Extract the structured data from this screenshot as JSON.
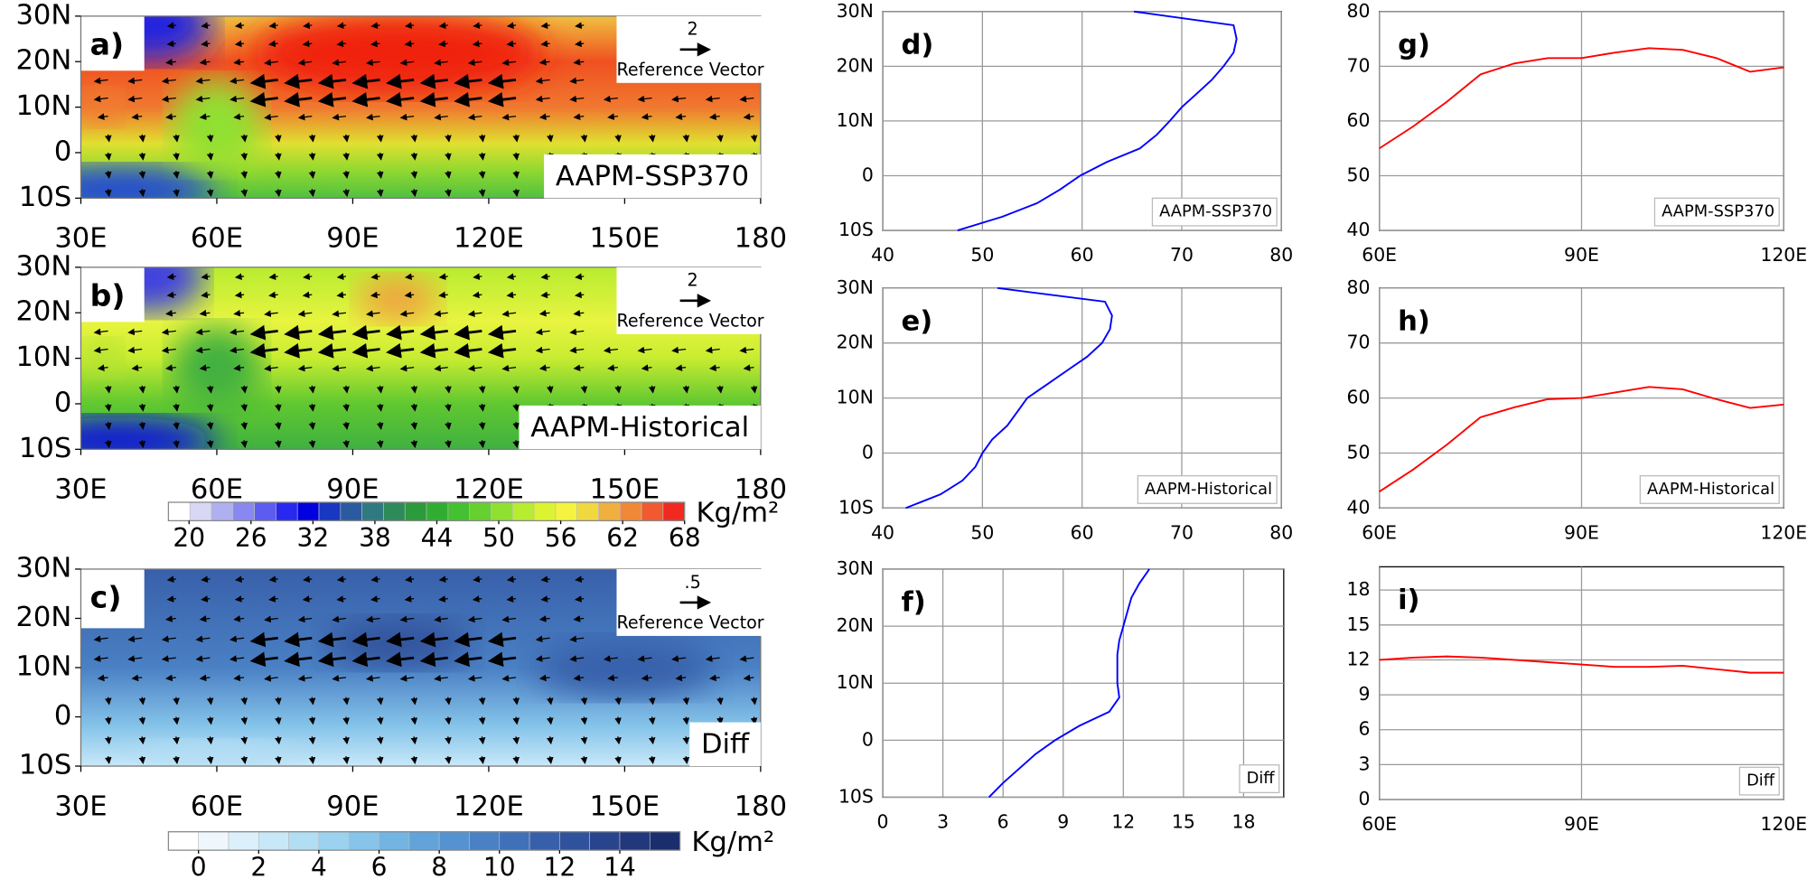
{
  "chart_data": [
    {
      "type": "map",
      "label": "a)",
      "title": "AAPM-SSP370",
      "xlim": [
        30,
        180
      ],
      "xticks": [
        {
          "value": 30,
          "label": "30E"
        },
        {
          "value": 60,
          "label": "60E"
        },
        {
          "value": 90,
          "label": "90E"
        },
        {
          "value": 120,
          "label": "120E"
        },
        {
          "value": 150,
          "label": "150E"
        },
        180
      ],
      "ylim": [
        -10,
        30
      ],
      "yticks": [
        {
          "value": 30,
          "label": "30N"
        },
        {
          "value": 20,
          "label": "20N"
        },
        {
          "value": 10,
          "label": "10N"
        },
        0,
        {
          "value": -10,
          "label": "10S"
        }
      ],
      "reference_vector": {
        "value_label": "2",
        "label": "Reference Vector"
      }
    },
    {
      "type": "map",
      "label": "b)",
      "title": "AAPM-Historical",
      "xlim": [
        30,
        180
      ],
      "xticks": [
        {
          "value": 30,
          "label": "30E"
        },
        {
          "value": 60,
          "label": "60E"
        },
        {
          "value": 90,
          "label": "90E"
        },
        {
          "value": 120,
          "label": "120E"
        },
        {
          "value": 150,
          "label": "150E"
        },
        180
      ],
      "ylim": [
        -10,
        30
      ],
      "yticks": [
        {
          "value": 30,
          "label": "30N"
        },
        {
          "value": 20,
          "label": "20N"
        },
        {
          "value": 10,
          "label": "10N"
        },
        0,
        {
          "value": -10,
          "label": "10S"
        }
      ],
      "reference_vector": {
        "value_label": "2",
        "label": "Reference Vector"
      }
    },
    {
      "type": "colorbar",
      "range": [
        18,
        68
      ],
      "ticks": [
        20,
        26,
        32,
        38,
        44,
        50,
        56,
        62,
        68
      ],
      "unit": "Kg/m²",
      "colors": [
        "#ffffff",
        "#d8d8f5",
        "#b0b0f0",
        "#8888f0",
        "#5c5cf0",
        "#2828f0",
        "#0000e0",
        "#1838c0",
        "#2a5aa0",
        "#2e7a80",
        "#2e8a5a",
        "#2a9a3a",
        "#30ad30",
        "#44c030",
        "#66d030",
        "#90e030",
        "#b8ec30",
        "#dcf430",
        "#f4f440",
        "#f0d840",
        "#f0b040",
        "#f08838",
        "#f05a30",
        "#f02a20"
      ]
    },
    {
      "type": "map",
      "label": "c)",
      "title": "Diff",
      "xlim": [
        30,
        180
      ],
      "xticks": [
        {
          "value": 30,
          "label": "30E"
        },
        {
          "value": 60,
          "label": "60E"
        },
        {
          "value": 90,
          "label": "90E"
        },
        {
          "value": 120,
          "label": "120E"
        },
        {
          "value": 150,
          "label": "150E"
        },
        180
      ],
      "ylim": [
        -10,
        30
      ],
      "yticks": [
        {
          "value": 30,
          "label": "30N"
        },
        {
          "value": 20,
          "label": "20N"
        },
        {
          "value": 10,
          "label": "10N"
        },
        0,
        {
          "value": -10,
          "label": "10S"
        }
      ],
      "reference_vector": {
        "value_label": ".5",
        "label": "Reference Vector"
      }
    },
    {
      "type": "colorbar",
      "range": [
        -1,
        16
      ],
      "ticks": [
        0,
        2,
        4,
        6,
        8,
        10,
        12,
        14
      ],
      "unit": "Kg/m²",
      "colors": [
        "#ffffff",
        "#eef7fd",
        "#dcf0fb",
        "#c8e8f8",
        "#b2def4",
        "#9cd2f0",
        "#86c4ea",
        "#72b4e2",
        "#62a4da",
        "#5592d0",
        "#4a80c4",
        "#4070b8",
        "#3860aa",
        "#30529c",
        "#28448c",
        "#22387c",
        "#1a2e6e"
      ]
    },
    {
      "type": "profile",
      "label": "d)",
      "legend": "AAPM-SSP370",
      "color": "#0000ff",
      "lat": [
        30,
        27.5,
        25,
        22.5,
        20,
        17.5,
        15,
        12.5,
        10,
        7.5,
        5,
        2.5,
        0,
        -2.5,
        -5,
        -7.5,
        -10
      ],
      "values": [
        65.2,
        75.2,
        75.5,
        75.2,
        74.2,
        73,
        71.5,
        70,
        68.8,
        67.5,
        65.8,
        62.5,
        59.8,
        57.8,
        55.5,
        52,
        47.5
      ],
      "xlim": [
        40,
        80
      ],
      "xticks": [
        40,
        50,
        60,
        70,
        80
      ],
      "ylim": [
        -10,
        30
      ],
      "yticks": [
        {
          "value": 30,
          "label": "30N"
        },
        {
          "value": 20,
          "label": "20N"
        },
        {
          "value": 10,
          "label": "10N"
        },
        0,
        {
          "value": -10,
          "label": "10S"
        }
      ],
      "grid": true
    },
    {
      "type": "profile",
      "label": "e)",
      "legend": "AAPM-Historical",
      "color": "#0000ff",
      "lat": [
        30,
        27.5,
        25,
        22.5,
        20,
        17.5,
        15,
        12.5,
        10,
        7.5,
        5,
        2.5,
        0,
        -2.5,
        -5,
        -7.5,
        -10
      ],
      "values": [
        51.5,
        62.3,
        63,
        62.8,
        62,
        60.5,
        58.5,
        56.5,
        54.5,
        53.5,
        52.5,
        51,
        50,
        49.3,
        48,
        45.8,
        42.3
      ],
      "xlim": [
        40,
        80
      ],
      "xticks": [
        40,
        50,
        60,
        70,
        80
      ],
      "ylim": [
        -10,
        30
      ],
      "yticks": [
        {
          "value": 30,
          "label": "30N"
        },
        {
          "value": 20,
          "label": "20N"
        },
        {
          "value": 10,
          "label": "10N"
        },
        0,
        {
          "value": -10,
          "label": "10S"
        }
      ],
      "grid": true
    },
    {
      "type": "profile",
      "label": "f)",
      "legend": "Diff",
      "color": "#0000ff",
      "lat": [
        30,
        27.5,
        25,
        22.5,
        20,
        17.5,
        15,
        12.5,
        10,
        7.5,
        5,
        2.5,
        0,
        -2.5,
        -5,
        -7.5,
        -10
      ],
      "values": [
        13.3,
        12.8,
        12.4,
        12.2,
        12,
        11.8,
        11.7,
        11.7,
        11.7,
        11.8,
        11.3,
        9.8,
        8.6,
        7.6,
        6.8,
        6,
        5.3
      ],
      "xlim": [
        0,
        20
      ],
      "xticks": [
        0,
        3,
        6,
        9,
        12,
        15,
        18
      ],
      "ylim": [
        -10,
        30
      ],
      "yticks": [
        {
          "value": 30,
          "label": "30N"
        },
        {
          "value": 20,
          "label": "20N"
        },
        {
          "value": 10,
          "label": "10N"
        },
        0,
        {
          "value": -10,
          "label": "10S"
        }
      ],
      "grid": true
    },
    {
      "type": "line",
      "label": "g)",
      "legend": "AAPM-SSP370",
      "color": "#ff0000",
      "x": [
        60,
        65,
        70,
        75,
        80,
        85,
        90,
        95,
        100,
        105,
        110,
        115,
        120
      ],
      "values": [
        55,
        59,
        63.5,
        68.5,
        70.5,
        71.5,
        71.5,
        72.5,
        73.3,
        73,
        71.5,
        69,
        69.8
      ],
      "xlim": [
        60,
        120
      ],
      "xticks": [
        {
          "value": 60,
          "label": "60E"
        },
        {
          "value": 90,
          "label": "90E"
        },
        {
          "value": 120,
          "label": "120E"
        }
      ],
      "ylim": [
        40,
        80
      ],
      "yticks": [
        40,
        50,
        60,
        70,
        80
      ],
      "grid": true
    },
    {
      "type": "line",
      "label": "h)",
      "legend": "AAPM-Historical",
      "color": "#ff0000",
      "x": [
        60,
        65,
        70,
        75,
        80,
        85,
        90,
        95,
        100,
        105,
        110,
        115,
        120
      ],
      "values": [
        43,
        47,
        51.5,
        56.5,
        58.3,
        59.8,
        60,
        61,
        62,
        61.6,
        59.8,
        58.2,
        58.8
      ],
      "xlim": [
        60,
        120
      ],
      "xticks": [
        {
          "value": 60,
          "label": "60E"
        },
        {
          "value": 90,
          "label": "90E"
        },
        {
          "value": 120,
          "label": "120E"
        }
      ],
      "ylim": [
        40,
        80
      ],
      "yticks": [
        40,
        50,
        60,
        70,
        80
      ],
      "grid": true
    },
    {
      "type": "line",
      "label": "i)",
      "legend": "Diff",
      "color": "#ff0000",
      "x": [
        60,
        65,
        70,
        75,
        80,
        85,
        90,
        95,
        100,
        105,
        110,
        115,
        120
      ],
      "values": [
        12,
        12.2,
        12.3,
        12.2,
        12,
        11.8,
        11.6,
        11.4,
        11.4,
        11.5,
        11.2,
        10.9,
        10.9
      ],
      "xlim": [
        60,
        120
      ],
      "xticks": [
        {
          "value": 60,
          "label": "60E"
        },
        {
          "value": 90,
          "label": "90E"
        },
        {
          "value": 120,
          "label": "120E"
        }
      ],
      "ylim": [
        0,
        20
      ],
      "yticks": [
        0,
        3,
        6,
        9,
        12,
        15,
        18
      ],
      "grid": true
    }
  ]
}
